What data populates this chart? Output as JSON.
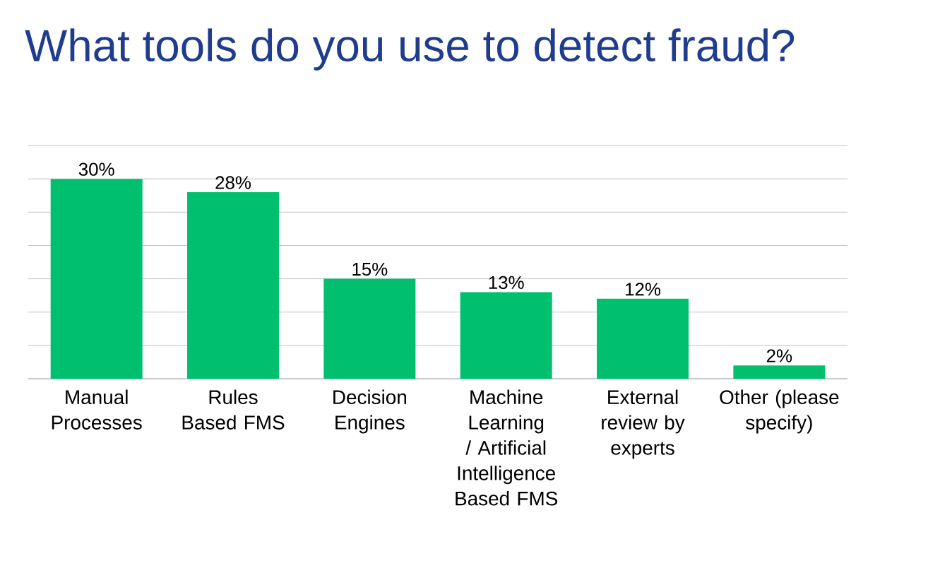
{
  "chart_data": {
    "type": "bar",
    "title": "What tools do you use to detect fraud?",
    "categories": [
      "Manual Processes",
      "Rules Based FMS",
      "Decision Engines",
      "Machine Learning / Artificial Intelligence Based FMS",
      "External review by experts",
      "Other (please specify)"
    ],
    "values": [
      30,
      28,
      15,
      13,
      12,
      2
    ],
    "value_labels": [
      "30%",
      "28%",
      "15%",
      "13%",
      "12%",
      "2%"
    ],
    "color": "#00c070",
    "ylim": [
      0,
      35
    ],
    "grid": "y",
    "tick_labels": "x"
  }
}
